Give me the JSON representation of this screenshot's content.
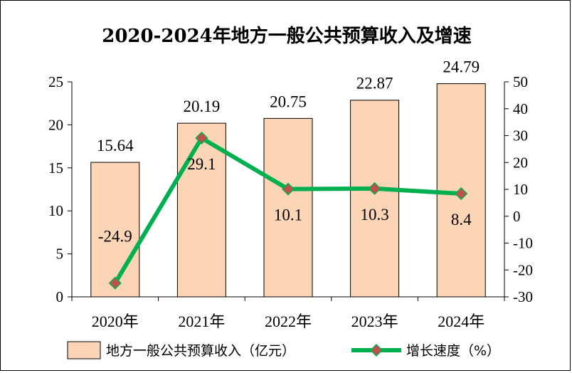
{
  "chart_data": {
    "type": "bar+line",
    "title": "2020-2024年地方一般公共预算收入及增速",
    "categories": [
      "2020年",
      "2021年",
      "2022年",
      "2023年",
      "2024年"
    ],
    "series": [
      {
        "name": "地方一般公共预算收入（亿元）",
        "type": "bar",
        "axis": "left",
        "values": [
          15.64,
          20.19,
          20.75,
          22.87,
          24.79
        ],
        "labels": [
          "15.64",
          "20.19",
          "20.75",
          "22.87",
          "24.79"
        ],
        "color": "#FBD5B5"
      },
      {
        "name": "增长速度（%）",
        "type": "line",
        "axis": "right",
        "values": [
          -24.9,
          29.1,
          10.1,
          10.3,
          8.4
        ],
        "labels": [
          "-24.9",
          "29.1",
          "10.1",
          "10.3",
          "8.4"
        ],
        "color": "#00B050",
        "marker_color": "#C0504D"
      }
    ],
    "left_axis": {
      "min": 0,
      "max": 25,
      "step": 5,
      "ticks": [
        "0",
        "5",
        "10",
        "15",
        "20",
        "25"
      ]
    },
    "right_axis": {
      "min": -30,
      "max": 50,
      "step": 10,
      "ticks": [
        "-30",
        "-20",
        "-10",
        "0",
        "10",
        "20",
        "30",
        "40",
        "50"
      ]
    },
    "legend_position": "bottom",
    "grid": false
  }
}
